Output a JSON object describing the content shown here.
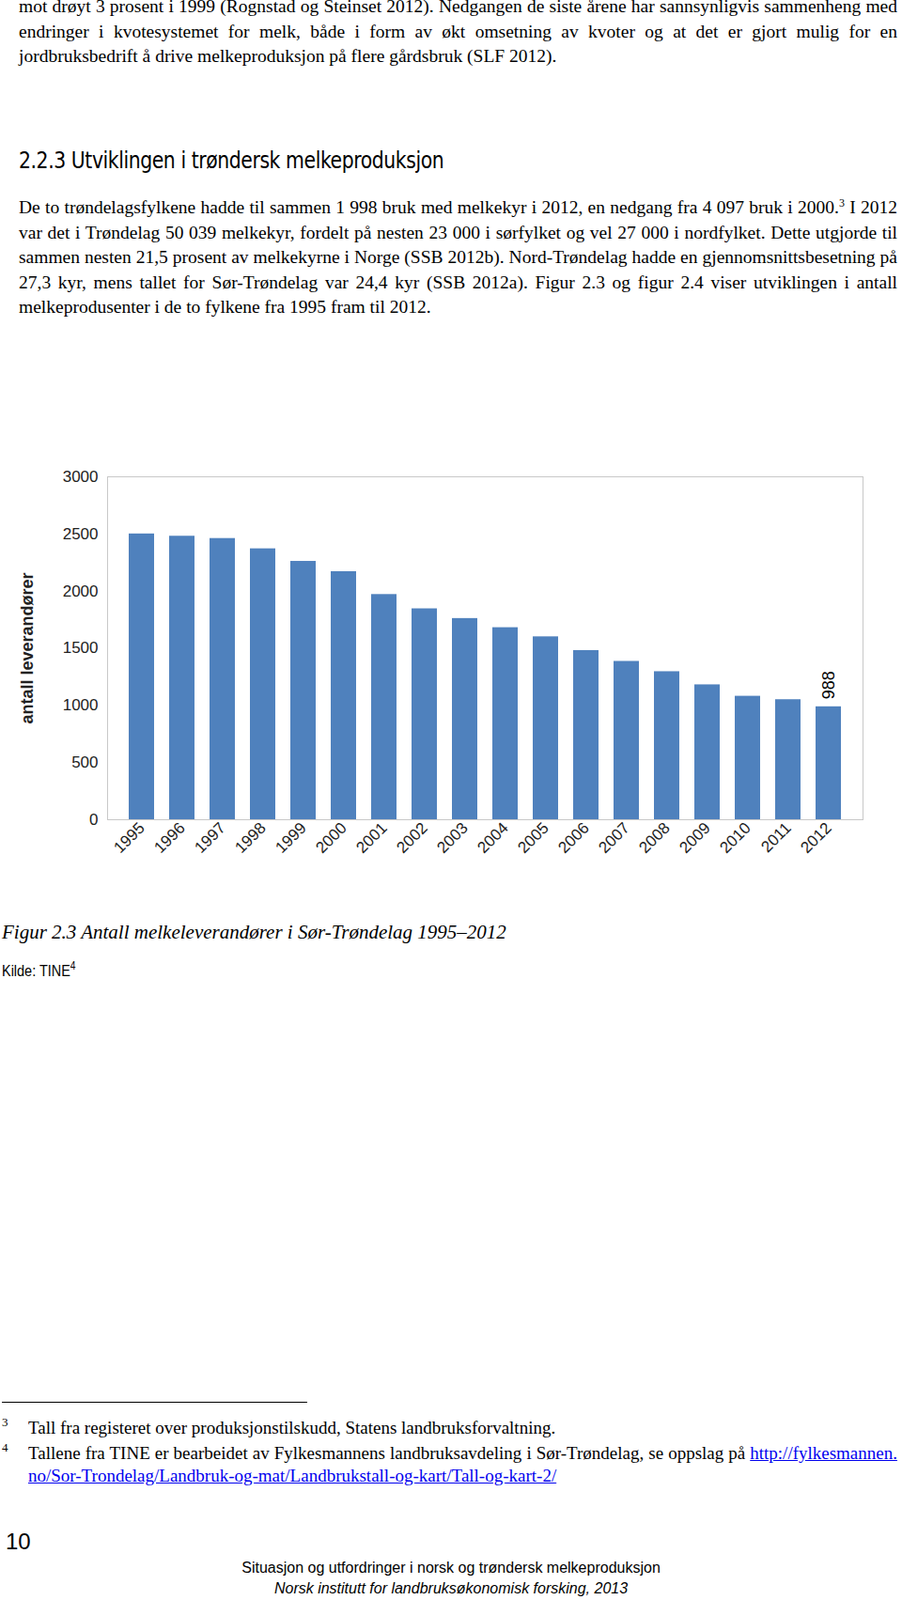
{
  "top_text": "mot drøyt 3 prosent i 1999 (Rognstad og Steinset 2012). Nedgangen de siste årene har sannsynligvis sammenheng med endringer i kvotesystemet for melk, både i form av økt omsetning av kvoter og at det er gjort mulig for en jordbruksbedrift å drive melkeproduksjon på flere gårdsbruk (SLF 2012).",
  "heading": "2.2.3 Utviklingen i trøndersk melkeproduksjon",
  "paragraph": {
    "before": "De to trøndelagsfylkene hadde til sammen 1 998 bruk med melkekyr i 2012, en nedgang fra 4 097 bruk i 2000.",
    "ref": "3",
    "after": " I 2012 var det i Trøndelag 50 039 melkekyr, fordelt på nesten 23 000 i sørfylket og vel 27 000 i nordfylket. Dette utgjorde til sammen nesten 21,5 prosent av melkekyrne i Norge (SSB 2012b). Nord-Trøndelag hadde en gjennomsnittsbesetning på 27,3 kyr, mens tallet for Sør-Trøndelag var 24,4 kyr (SSB 2012a). Figur 2.3 og figur 2.4 viser utviklingen i antall melkeprodusenter i de to fylkene fra 1995 fram til 2012."
  },
  "chart_data": {
    "type": "bar",
    "y_label": "antall leverandører",
    "categories": [
      "1995",
      "1996",
      "1997",
      "1998",
      "1999",
      "2000",
      "2001",
      "2002",
      "2003",
      "2004",
      "2005",
      "2006",
      "2007",
      "2008",
      "2009",
      "2010",
      "2011",
      "2012"
    ],
    "values": [
      2500,
      2480,
      2460,
      2370,
      2260,
      2170,
      1970,
      1845,
      1760,
      1680,
      1600,
      1480,
      1385,
      1295,
      1180,
      1080,
      1050,
      988
    ],
    "value_labels": [
      null,
      null,
      null,
      null,
      null,
      null,
      null,
      null,
      null,
      null,
      null,
      null,
      null,
      null,
      null,
      null,
      null,
      "988"
    ],
    "data_labels": true,
    "color": "#4f81bd",
    "ylim": [
      0,
      3000
    ],
    "yticks": [
      0,
      500,
      1000,
      1500,
      2000,
      2500,
      3000
    ],
    "grid": false
  },
  "caption": "Figur 2.3 Antall melkeleverandører i Sør-Trøndelag 1995–2012",
  "source": {
    "text": "Kilde: TINE",
    "ref": "4"
  },
  "footnotes": [
    {
      "mark": "3",
      "text": "Tall fra registeret over produksjonstilskudd, Statens landbruksforvaltning."
    },
    {
      "mark": "4",
      "text": "Tallene fra TINE er bearbeidet av Fylkesmannens landbruksavdeling i Sør-Trøndelag, se oppslag på ",
      "link": "http://fylkesmannen.no/Sor-Trondelag/Landbruk-og-mat/Landbrukstall-og-kart/Tall-og-kart-2/"
    }
  ],
  "page_number": "10",
  "footer": [
    "Situasjon og utfordringer i norsk og trøndersk melkeproduksjon",
    "Norsk institutt for landbruksøkonomisk forsking, 2013"
  ]
}
